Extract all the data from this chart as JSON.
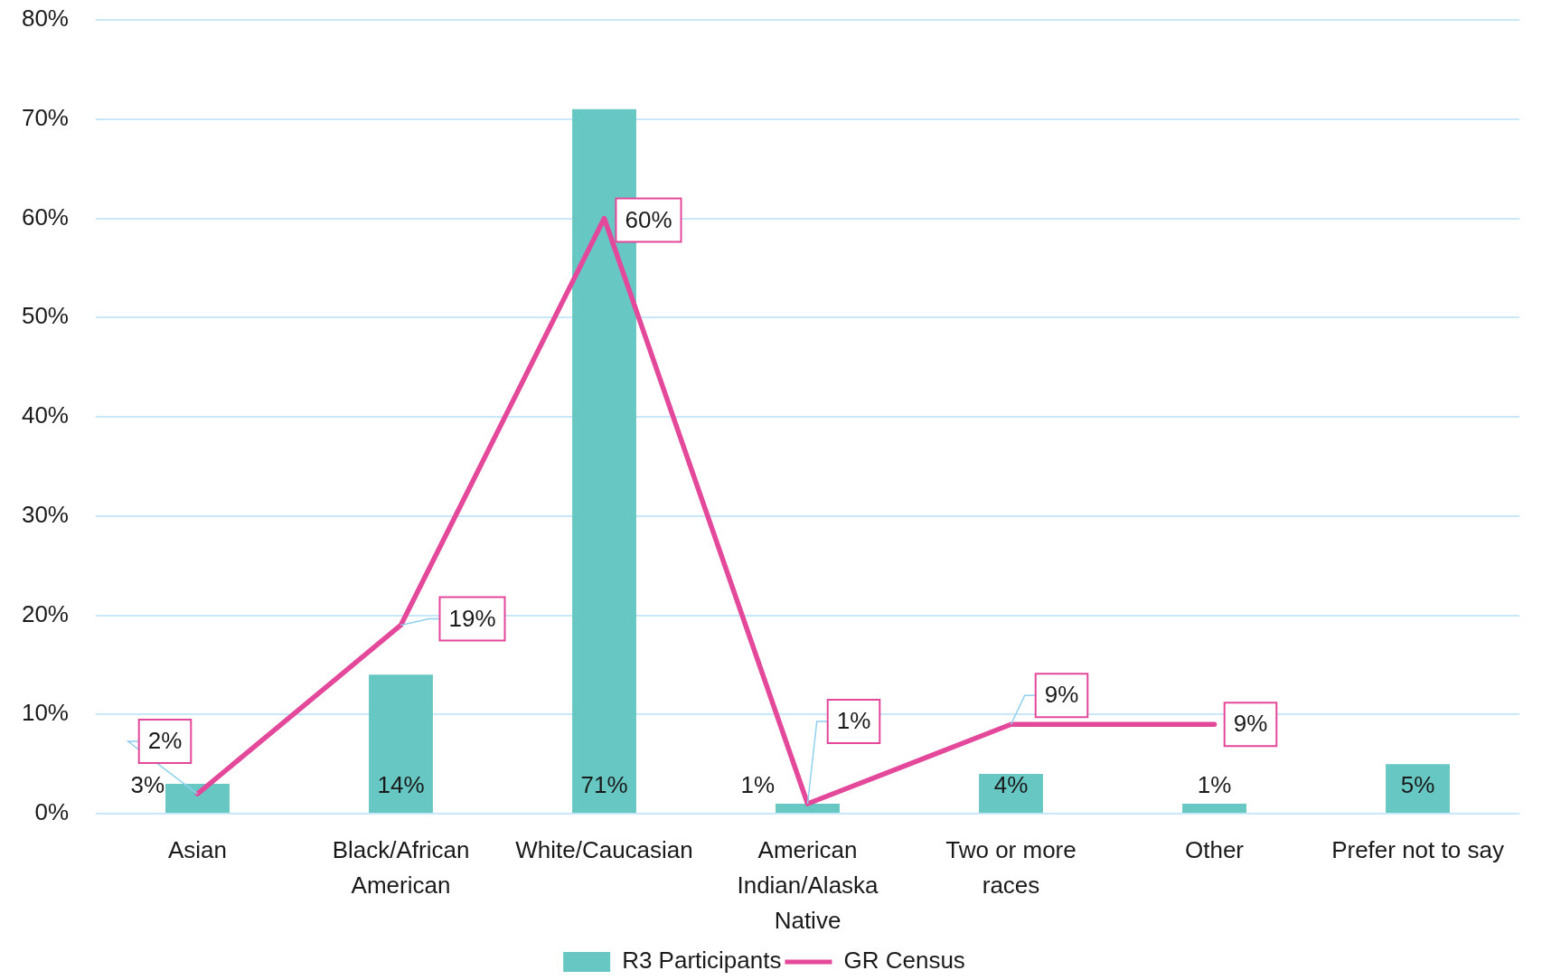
{
  "chart_data": {
    "type": "bar",
    "categories": [
      "Asian",
      "Black/African American",
      "White/Caucasian",
      "American Indian/Alaska Native",
      "Two or more races",
      "Other",
      "Prefer not to say"
    ],
    "series": [
      {
        "name": "R3 Participants",
        "color": "#67c7c3",
        "values": [
          3,
          14,
          71,
          1,
          4,
          1,
          5
        ],
        "value_labels": [
          "3%",
          "14%",
          "71%",
          "1%",
          "4%",
          "1%",
          "5%"
        ]
      },
      {
        "name": "GR Census",
        "type": "line",
        "color": "#e4489a",
        "values": [
          2,
          19,
          60,
          1,
          9,
          9,
          null
        ],
        "value_labels": [
          "2%",
          "19%",
          "60%",
          "1%",
          "9%",
          "9%",
          null
        ]
      }
    ],
    "ylim": [
      0,
      80
    ],
    "yticks": [
      {
        "value": 0,
        "label": "0%"
      },
      {
        "value": 10,
        "label": "10%"
      },
      {
        "value": 20,
        "label": "20%"
      },
      {
        "value": 30,
        "label": "30%"
      },
      {
        "value": 40,
        "label": "40%"
      },
      {
        "value": 50,
        "label": "50%"
      },
      {
        "value": 60,
        "label": "60%"
      },
      {
        "value": 70,
        "label": "70%"
      },
      {
        "value": 80,
        "label": "80%"
      }
    ],
    "grid": "y",
    "legend": "bottom",
    "marker": "none",
    "line_style": "solid"
  }
}
